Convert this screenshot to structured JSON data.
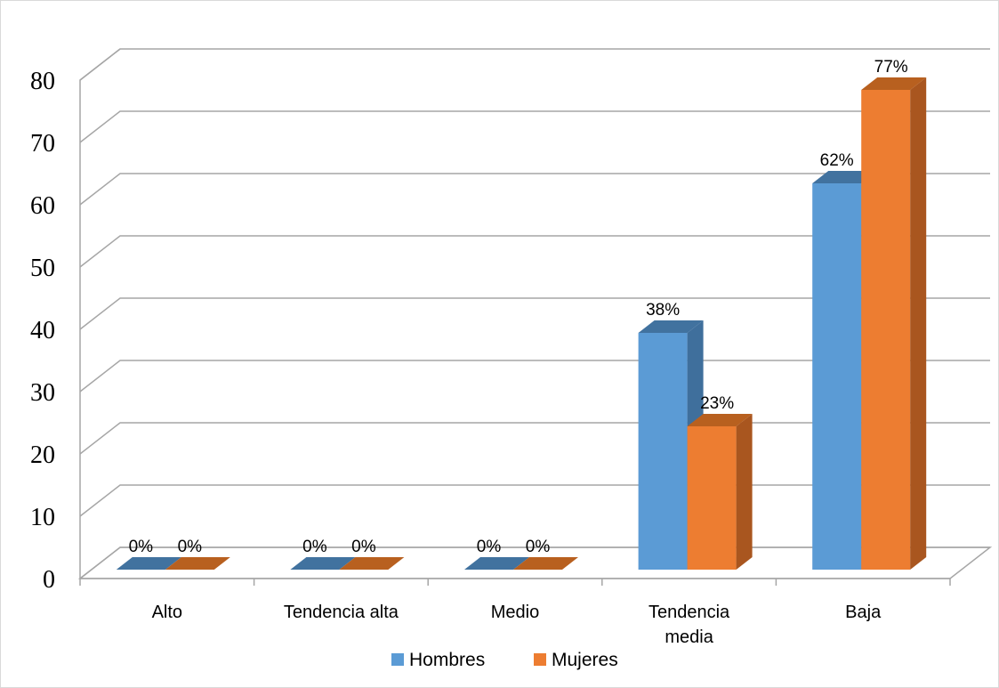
{
  "chart_data": {
    "type": "bar",
    "style": "3d-clustered-column",
    "categories": [
      "Alto",
      "Tendencia alta",
      "Medio",
      "Tendencia media",
      "Baja"
    ],
    "series": [
      {
        "name": "Hombres",
        "values": [
          0,
          0,
          0,
          38,
          62
        ],
        "data_labels": [
          "0%",
          "0%",
          "0%",
          "38%",
          "62%"
        ],
        "color": "#5B9BD5",
        "side_color": "#3F6F9C",
        "top_color": "#41729F"
      },
      {
        "name": "Mujeres",
        "values": [
          0,
          0,
          0,
          23,
          77
        ],
        "data_labels": [
          "0%",
          "0%",
          "0%",
          "23%",
          "77%"
        ],
        "color": "#ED7D31",
        "side_color": "#A9561F",
        "top_color": "#B8601F"
      }
    ],
    "ylim": [
      0,
      80
    ],
    "yticks": [
      0,
      10,
      20,
      30,
      40,
      50,
      60,
      70,
      80
    ],
    "grid": true,
    "legend_position": "bottom",
    "title": "",
    "xlabel": "",
    "ylabel": ""
  }
}
